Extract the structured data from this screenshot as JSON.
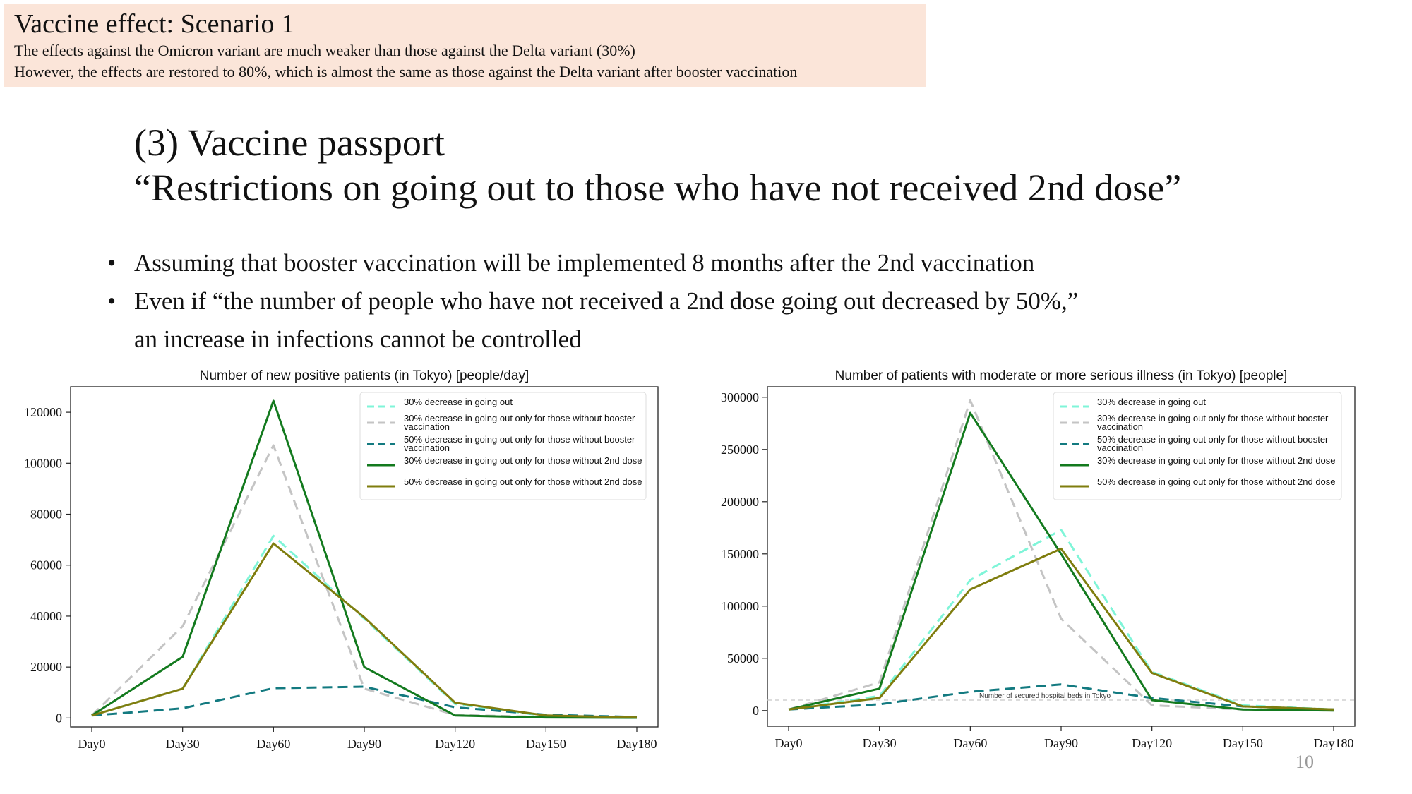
{
  "banner": {
    "title": "Vaccine effect: Scenario 1",
    "line1": "The effects against the Omicron variant are much weaker than those against the Delta variant (30%)",
    "line2": "However, the effects are restored to 80%, which is almost the same as those against the Delta variant after booster vaccination"
  },
  "main_title": {
    "line1": "(3) Vaccine passport",
    "line2": "“Restrictions on going out to those who have not received 2nd dose”"
  },
  "bullets": {
    "b1": "Assuming that booster vaccination will be implemented 8 months after the 2nd vaccination",
    "b2": "Even if “the number of people who have not received a 2nd dose going out decreased by 50%,”",
    "b2_cont": "an increase in infections cannot be controlled"
  },
  "page_number": "10",
  "colors": {
    "s1": "#7ff5d8",
    "s2": "#c4c4c4",
    "s3": "#137a80",
    "s4": "#137a1e",
    "s5": "#7f7d0e"
  },
  "chart_data": [
    {
      "type": "line",
      "title": "Number of new positive patients (in Tokyo) [people/day]",
      "categories": [
        "Day0",
        "Day30",
        "Day60",
        "Day90",
        "Day120",
        "Day150",
        "Day180"
      ],
      "ylim": [
        -3500,
        130000
      ],
      "yticks": [
        "0",
        "20000",
        "40000",
        "60000",
        "80000",
        "100000",
        "120000"
      ],
      "legend_position": "upper-right",
      "series": [
        {
          "name": "30% decrease in going out",
          "values": [
            1000,
            11500,
            71500,
            39000,
            5500,
            800,
            200
          ]
        },
        {
          "name": "30% decrease in going out only for those without booster vaccination",
          "values": [
            1000,
            36000,
            107000,
            11500,
            1200,
            400,
            100
          ]
        },
        {
          "name": "50% decrease in going out only for those without booster vaccination",
          "values": [
            1000,
            3800,
            11700,
            12300,
            4200,
            1300,
            400
          ]
        },
        {
          "name": "30% decrease in going out only for those without 2nd dose",
          "values": [
            1000,
            24000,
            124500,
            20000,
            1000,
            200,
            100
          ]
        },
        {
          "name": "50% decrease in going out only for those without 2nd dose",
          "values": [
            1000,
            11500,
            68500,
            39500,
            6000,
            1000,
            200
          ]
        }
      ]
    },
    {
      "type": "line",
      "title": "Number of patients with moderate or more serious illness (in Tokyo) [people]",
      "categories": [
        "Day0",
        "Day30",
        "Day60",
        "Day90",
        "Day120",
        "Day150",
        "Day180"
      ],
      "ylim": [
        -15000,
        310000
      ],
      "yticks": [
        "0",
        "50000",
        "100000",
        "150000",
        "200000",
        "250000",
        "300000"
      ],
      "legend_position": "upper-right",
      "annotation": "Number of secured hospital beds in Tokyo",
      "hline": 10000,
      "series": [
        {
          "name": "30% decrease in going out",
          "values": [
            1000,
            14000,
            125000,
            173000,
            37000,
            5000,
            1000
          ]
        },
        {
          "name": "30% decrease in going out only for those without booster vaccination",
          "values": [
            1000,
            27000,
            297000,
            88000,
            5000,
            1000,
            0
          ]
        },
        {
          "name": "50% decrease in going out only for those without booster vaccination",
          "values": [
            1000,
            6000,
            18000,
            25000,
            12000,
            4000,
            1000
          ]
        },
        {
          "name": "30% decrease in going out only for those without 2nd dose",
          "values": [
            1000,
            21000,
            285000,
            150000,
            10000,
            1000,
            0
          ]
        },
        {
          "name": "50% decrease in going out only for those without 2nd dose",
          "values": [
            1000,
            12000,
            116000,
            155000,
            36000,
            4000,
            1000
          ]
        }
      ]
    }
  ]
}
